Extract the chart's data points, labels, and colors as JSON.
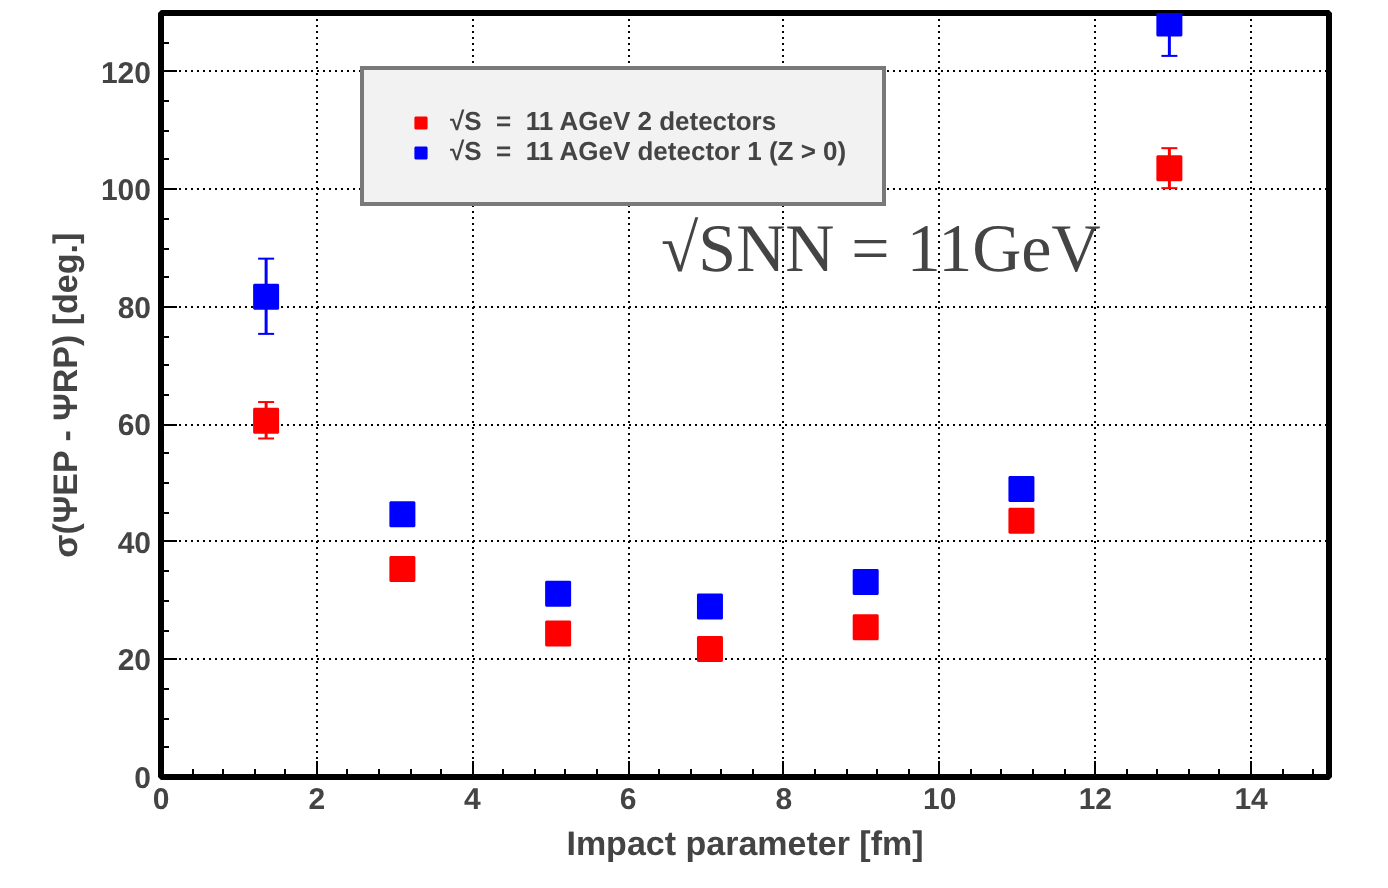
{
  "chart_data": {
    "type": "scatter",
    "xlabel": "Impact parameter [fm]",
    "ylabel": "σ(ΨEP - ΨRP) [deg.]",
    "x": [
      1.35,
      3.1,
      5.1,
      7.05,
      9.05,
      11.05,
      12.95
    ],
    "series": [
      {
        "name": "√S  =  11 AGeV 2 detectors",
        "color": "#ff0000",
        "values": [
          60.6,
          35.4,
          24.4,
          21.8,
          25.5,
          43.6,
          103.6
        ],
        "errors": [
          [
            57.6,
            63.8
          ],
          null,
          null,
          null,
          null,
          null,
          [
            100.2,
            107
          ]
        ]
      },
      {
        "name": "√S  =  11 AGeV detector 1 (Z > 0)",
        "color": "#0000ff",
        "values": [
          81.7,
          44.7,
          31.2,
          29.0,
          33.2,
          49.0,
          128.2
        ],
        "errors": [
          [
            75.4,
            88.2
          ],
          null,
          null,
          null,
          null,
          null,
          [
            122.7,
            130
          ]
        ]
      }
    ],
    "annotations": [
      "√SNN = 11GeV"
    ],
    "xlim": [
      0,
      15
    ],
    "ylim": [
      0,
      130
    ],
    "xticks": [
      0,
      2,
      4,
      6,
      8,
      10,
      12,
      14
    ],
    "yticks": [
      0,
      20,
      40,
      60,
      80,
      100,
      120
    ],
    "grid": true,
    "legend": "top",
    "marker": "square"
  }
}
